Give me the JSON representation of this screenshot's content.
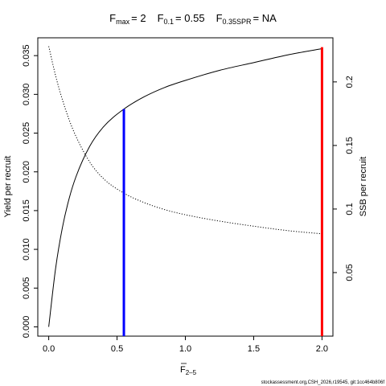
{
  "chart_data": {
    "type": "line",
    "title": {
      "fmax_symbol": "F",
      "fmax_sub": "max",
      "fmax_value": "= 2",
      "f01_symbol": "F",
      "f01_sub": "0.1",
      "f01_value": "= 0.55",
      "fspr_symbol": "F",
      "fspr_sub": "0.35SPR",
      "fspr_value": "= NA"
    },
    "xlabel": {
      "symbol": "F",
      "sub": "2–5"
    },
    "ylabel": "Yield per recruit",
    "y2label": "SSB per recruit",
    "xlim": [
      -0.08,
      2.08
    ],
    "ylim": [
      -0.0012,
      0.0373
    ],
    "y2lim": [
      0.0,
      0.2347
    ],
    "x_ticks": [
      {
        "value": 0.0,
        "label": "0.0"
      },
      {
        "value": 0.5,
        "label": "0.5"
      },
      {
        "value": 1.0,
        "label": "1.0"
      },
      {
        "value": 1.5,
        "label": "1.5"
      },
      {
        "value": 2.0,
        "label": "2.0"
      }
    ],
    "y_ticks": [
      {
        "value": 0.0,
        "label": "0.000"
      },
      {
        "value": 0.005,
        "label": "0.005"
      },
      {
        "value": 0.01,
        "label": "0.010"
      },
      {
        "value": 0.015,
        "label": "0.015"
      },
      {
        "value": 0.02,
        "label": "0.020"
      },
      {
        "value": 0.025,
        "label": "0.025"
      },
      {
        "value": 0.03,
        "label": "0.030"
      },
      {
        "value": 0.035,
        "label": "0.035"
      }
    ],
    "y2_ticks": [
      {
        "value": 0.05,
        "label": "0.05"
      },
      {
        "value": 0.1,
        "label": "0.1"
      },
      {
        "value": 0.15,
        "label": "0.15"
      },
      {
        "value": 0.2,
        "label": "0.2"
      }
    ],
    "series": [
      {
        "axis": "left",
        "style": "solid",
        "x": [
          0.0,
          0.05,
          0.1,
          0.15,
          0.2,
          0.3,
          0.4,
          0.55,
          0.7,
          0.85,
          1.0,
          1.25,
          1.5,
          1.75,
          2.0
        ],
        "y": [
          0.0,
          0.0075,
          0.0128,
          0.0166,
          0.0194,
          0.0233,
          0.0258,
          0.0281,
          0.0297,
          0.0309,
          0.0318,
          0.0331,
          0.0341,
          0.0351,
          0.0359
        ]
      },
      {
        "axis": "right",
        "style": "dotted",
        "x": [
          0.0,
          0.05,
          0.1,
          0.15,
          0.2,
          0.3,
          0.4,
          0.55,
          0.7,
          0.85,
          1.0,
          1.25,
          1.5,
          1.75,
          2.0
        ],
        "y": [
          0.228,
          0.205,
          0.186,
          0.17,
          0.157,
          0.137,
          0.124,
          0.1125,
          0.105,
          0.0995,
          0.0955,
          0.0905,
          0.0865,
          0.083,
          0.0805
        ]
      }
    ],
    "reference_lines": [
      {
        "x": 0.55,
        "y": 0.0281,
        "color": "#0000ff"
      },
      {
        "x": 2.0,
        "y": 0.0361,
        "color": "#ff0000"
      }
    ],
    "grid": false,
    "legend": "none",
    "footnote": "stockassessment.org,CSH_2026,r19545, git:1cc464b806f"
  }
}
